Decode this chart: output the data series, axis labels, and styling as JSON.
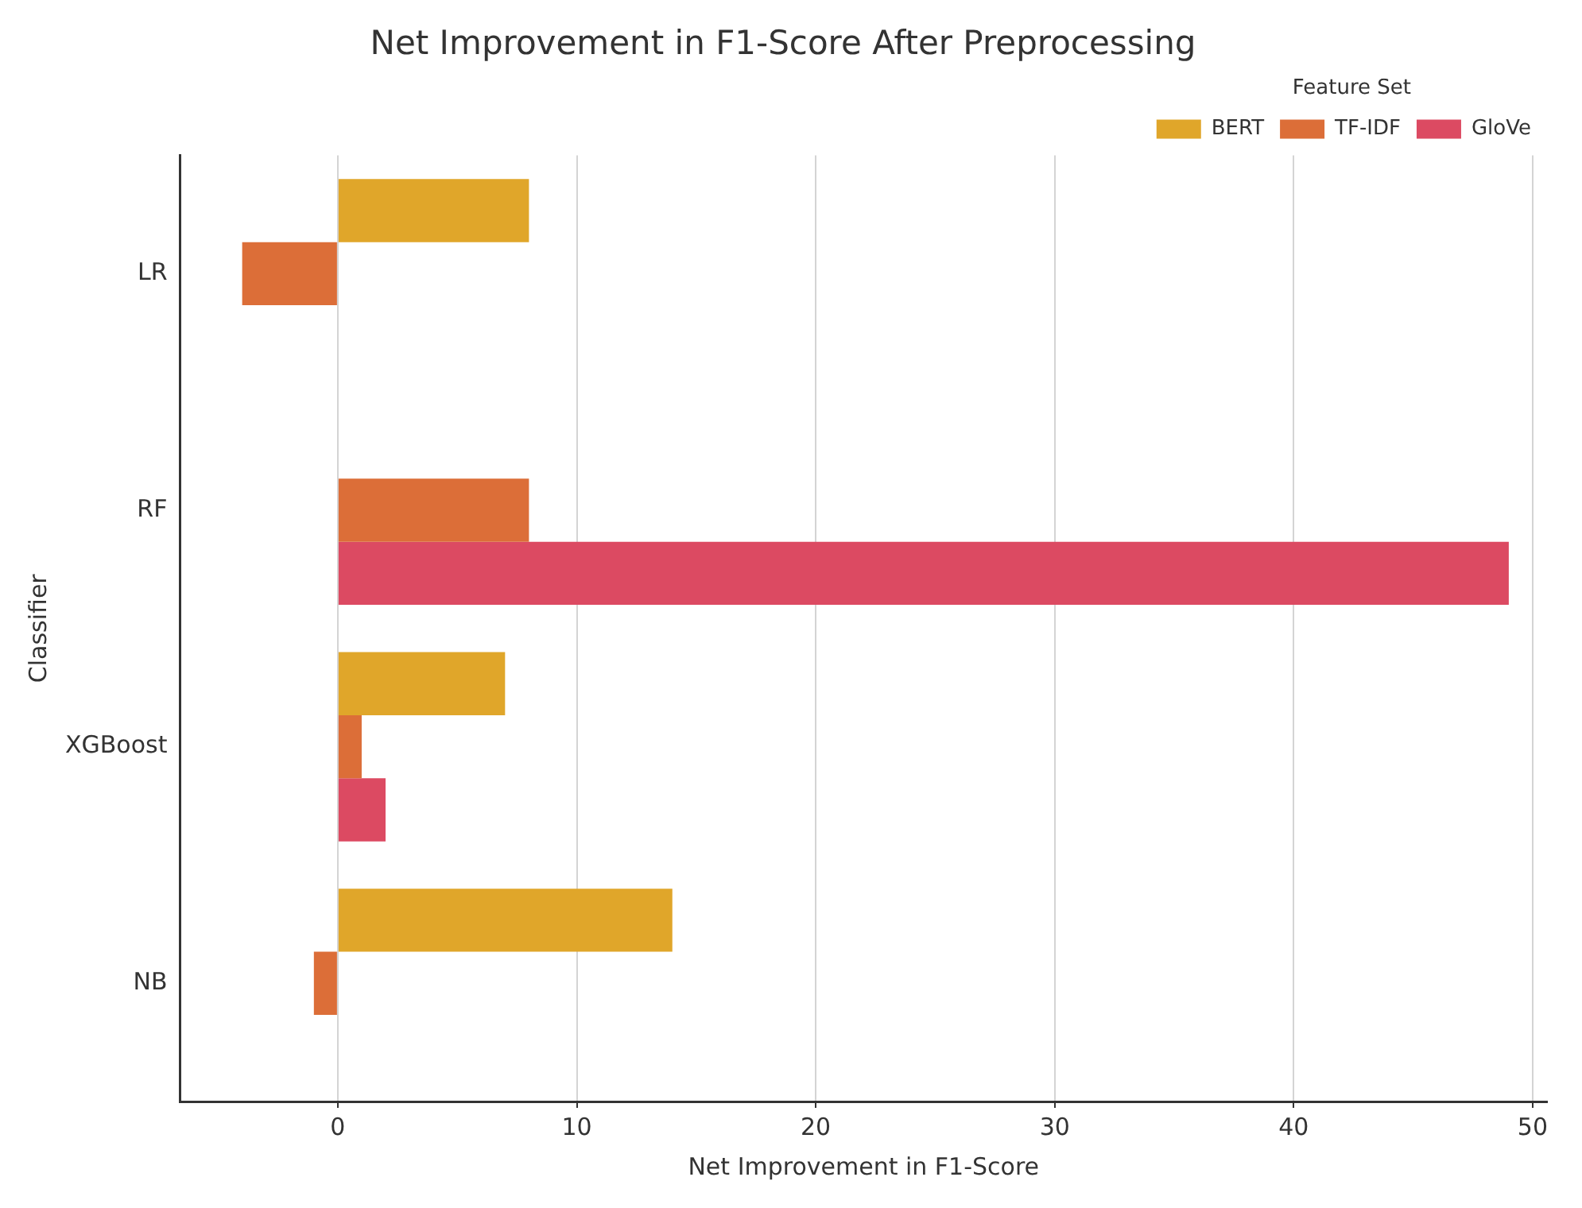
{
  "chart_data": {
    "type": "bar",
    "orientation": "horizontal",
    "title": "Net Improvement in F1-Score After Preprocessing",
    "xlabel": "Net Improvement in F1-Score",
    "ylabel": "Classifier",
    "legend_title": "Feature Set",
    "categories": [
      "LR",
      "RF",
      "XGBoost",
      "NB"
    ],
    "series": [
      {
        "name": "BERT",
        "color": "#e0a62a",
        "values": [
          8,
          null,
          7,
          14
        ]
      },
      {
        "name": "TF-IDF",
        "color": "#dc6e38",
        "values": [
          -4,
          8,
          1,
          -1
        ]
      },
      {
        "name": "GloVe",
        "color": "#dc4a62",
        "values": [
          null,
          49,
          2,
          null
        ]
      }
    ],
    "xlim": [
      -6.6,
      50.6
    ],
    "xticks": [
      0,
      10,
      20,
      30,
      40,
      50
    ],
    "grid": "x",
    "legend": "top right"
  }
}
